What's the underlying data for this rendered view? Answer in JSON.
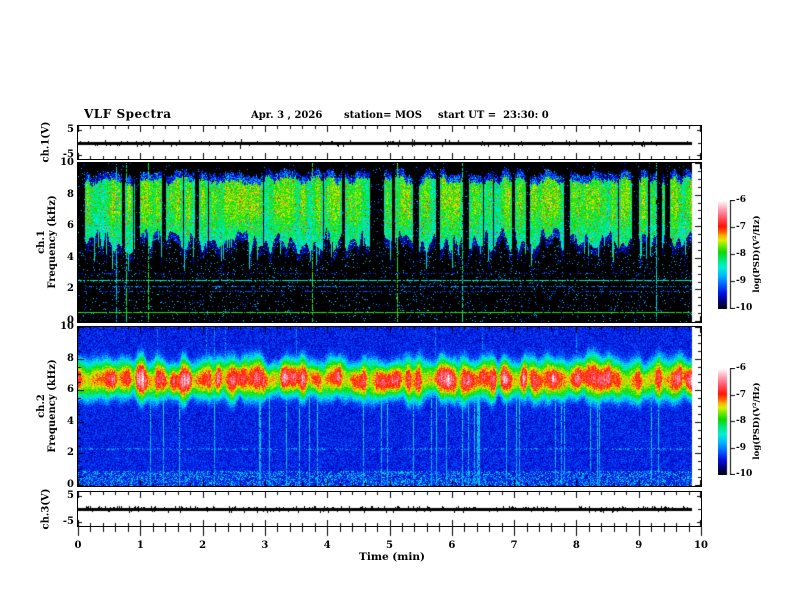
{
  "chart_data": {
    "type": "heatmap",
    "title": "VLF Spectra",
    "date": "Apr. 3 , 2026",
    "station": "station= MOS",
    "start_ut": "start UT =  23:30: 0",
    "x_axis": {
      "label": "Time (min)",
      "range": [
        0,
        10
      ],
      "tick_labels": [
        "0",
        "1",
        "2",
        "3",
        "4",
        "5",
        "6",
        "7",
        "8",
        "9",
        "10"
      ],
      "minor_step_min": 0.2,
      "data_extent_min": [
        0,
        9.85
      ]
    },
    "psd_scale": {
      "label": "log(PSD)(V²/Hz)",
      "range_log10": [
        -10,
        -6
      ]
    },
    "colormap": {
      "stops": [
        {
          "t": 0.0,
          "color": "#000008"
        },
        {
          "t": 0.06,
          "color": "#000070"
        },
        {
          "t": 0.14,
          "color": "#0010e0"
        },
        {
          "t": 0.22,
          "color": "#0060ff"
        },
        {
          "t": 0.3,
          "color": "#00b4ff"
        },
        {
          "t": 0.38,
          "color": "#00f0d8"
        },
        {
          "t": 0.45,
          "color": "#00e878"
        },
        {
          "t": 0.52,
          "color": "#10d800"
        },
        {
          "t": 0.58,
          "color": "#70e800"
        },
        {
          "t": 0.63,
          "color": "#d8f000"
        },
        {
          "t": 0.67,
          "color": "#ffb400"
        },
        {
          "t": 0.71,
          "color": "#ff6000"
        },
        {
          "t": 0.76,
          "color": "#ff1400"
        },
        {
          "t": 0.84,
          "color": "#ff5468"
        },
        {
          "t": 0.92,
          "color": "#ffa4b4"
        },
        {
          "t": 1.0,
          "color": "#ffffff"
        }
      ]
    },
    "panels": [
      {
        "id": "ch1_voltage",
        "kind": "line",
        "ylabel": "ch.1(V)",
        "ytick_labels": [
          "5",
          "-5"
        ],
        "ytick_values": [
          5,
          -5
        ],
        "y_range": [
          -6.6,
          6.6
        ],
        "summary": "Quiescent voltage trace near 0 V with sparse small impulsive spikes",
        "render": {
          "seed": 11,
          "fuzz_up": 0.1,
          "fuzz_dn": 0.1,
          "spike_prob": 0.006
        }
      },
      {
        "id": "ch1_spectrogram",
        "kind": "heatmap",
        "ylabel_line1": "ch.1",
        "ylabel_line2": "Frequency (kHz)",
        "ytick_labels": [
          "10",
          "8",
          "6",
          "4",
          "2",
          "0"
        ],
        "y_range_khz": [
          0,
          10
        ],
        "summary": "Black background; dense broadband burst columns between ~4 and ~9.6 kHz, green with yellow-red cores near 7-8.5 kHz; narrow full-height sferic streaks; faint horizontal carrier lines near 2.6, 2.2 and 1.9 kHz and a green carrier near 0.55 kHz; sparse blue speckle below 4 kHz",
        "render": {
          "seed": 23,
          "dataW": 614,
          "sferic_prob": 0.022,
          "band_core_khz": 7.7,
          "band_top_khz": 9.4,
          "band_bottom_khz": 4.2,
          "lines": [
            [
              2.62,
              0.85,
              -8.4
            ],
            [
              2.2,
              0.5,
              -9.0
            ],
            [
              1.88,
              0.35,
              -9.2
            ],
            [
              3.05,
              0.22,
              -9.3
            ],
            [
              0.55,
              0.92,
              -7.9
            ]
          ]
        }
      },
      {
        "id": "ch2_spectrogram",
        "kind": "heatmap",
        "ylabel_line1": "ch.2",
        "ylabel_line2": "Frequency (kHz)",
        "ytick_labels": [
          "10",
          "8",
          "6",
          "4",
          "2",
          "0"
        ],
        "y_range_khz": [
          0,
          10
        ],
        "summary": "Dark-blue noise background; intense continuous hiss band centred near 6.7 kHz with red-orange core grading through yellow, green and cyan between ~5 and ~8.5 kHz; cyan sferic streaks extending down to 0 kHz; enhanced speckle below 1 kHz",
        "render": {
          "seed": 47,
          "dataW": 614,
          "sferic_prob": 0.055,
          "band_center_khz": 6.7,
          "band_halfwidth_khz": 1.3
        }
      },
      {
        "id": "ch3_voltage",
        "kind": "line",
        "ylabel": "ch.3(V)",
        "ytick_labels": [
          "5",
          "-5"
        ],
        "ytick_values": [
          5,
          -5
        ],
        "y_range": [
          -6.6,
          6.6
        ],
        "summary": "Quiescent voltage trace near 0 V with dense tiny mostly-upward fluctuations",
        "render": {
          "seed": 61,
          "fuzz_up": 0.3,
          "fuzz_dn": 0.1,
          "spike_prob": 0.004
        }
      }
    ],
    "colorbars": [
      {
        "label": "log(PSD)(V²/Hz)",
        "tick_labels": [
          "-6",
          "-7",
          "-8",
          "-9",
          "-10"
        ]
      },
      {
        "label": "log(PSD)(V²/Hz)",
        "tick_labels": [
          "-6",
          "-7",
          "-8",
          "-9",
          "-10"
        ]
      }
    ]
  }
}
